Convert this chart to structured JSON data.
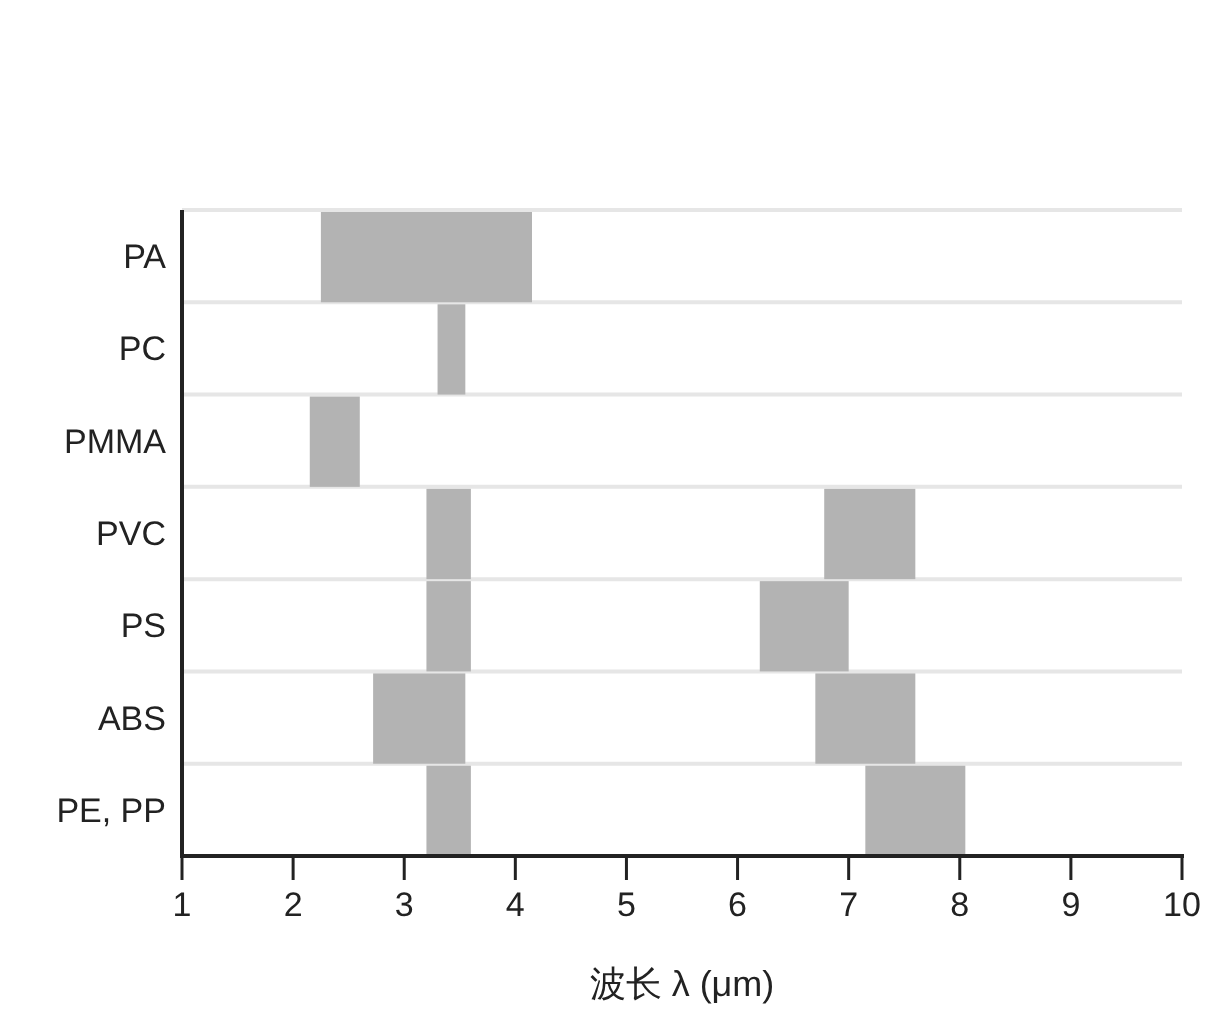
{
  "chart_data": {
    "type": "bar",
    "orientation": "horizontal",
    "xlabel": "波长 λ (μm)",
    "categories": [
      "PA",
      "PC",
      "PMMA",
      "PVC",
      "PS",
      "ABS",
      "PE, PP"
    ],
    "series": [
      {
        "color": "#b3b3b3",
        "base": [
          2.25,
          3.3,
          2.15,
          3.2,
          3.2,
          2.72,
          3.2
        ],
        "values": [
          1.9,
          0.25,
          0.45,
          0.4,
          0.4,
          0.83,
          0.4
        ]
      },
      {
        "color": "#b3b3b3",
        "base": [
          null,
          null,
          null,
          6.78,
          6.2,
          6.7,
          7.15
        ],
        "values": [
          null,
          null,
          null,
          0.82,
          0.8,
          0.9,
          0.9
        ]
      }
    ],
    "xlim": [
      1,
      10
    ],
    "xticks": [
      1,
      2,
      3,
      4,
      5,
      6,
      7,
      8,
      9,
      10
    ],
    "grid": "y"
  }
}
